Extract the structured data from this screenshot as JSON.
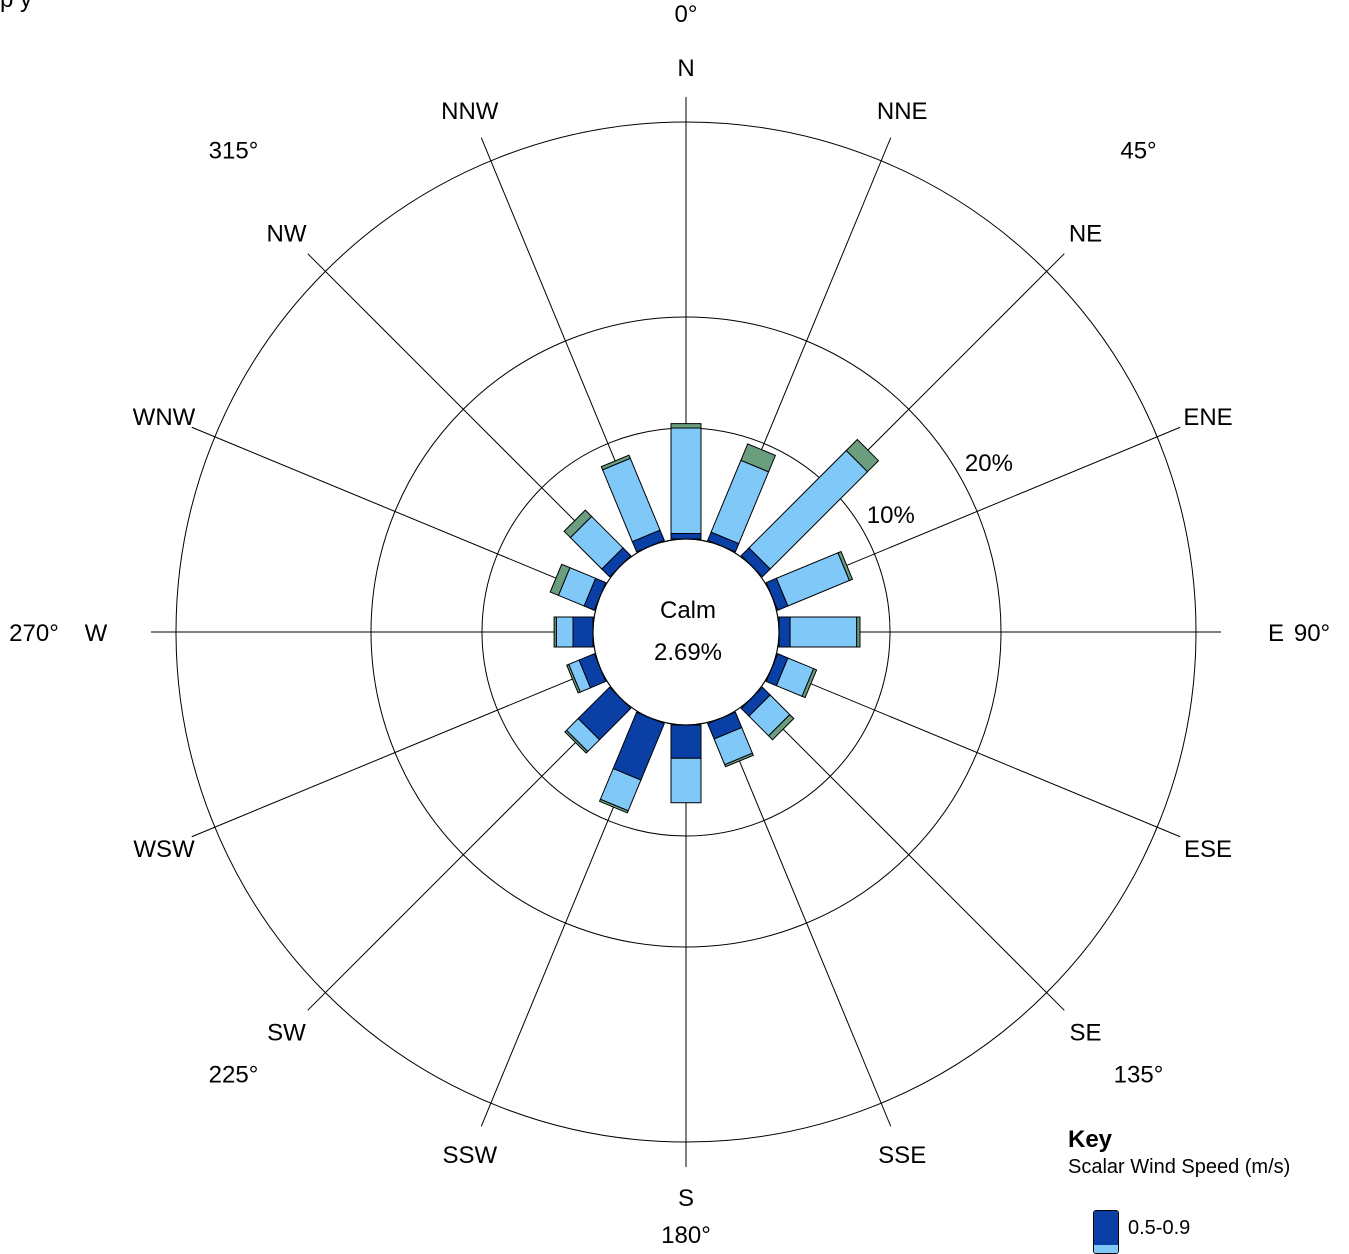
{
  "page_title": "p                y",
  "chart_data": {
    "type": "wind-rose",
    "title": "p                y",
    "directions": [
      "N",
      "NNE",
      "NE",
      "ENE",
      "E",
      "ESE",
      "SE",
      "SSE",
      "S",
      "SSW",
      "SW",
      "WSW",
      "W",
      "WNW",
      "NW",
      "NNW"
    ],
    "direction_degrees": [
      0,
      22.5,
      45,
      67.5,
      90,
      112.5,
      135,
      157.5,
      180,
      202.5,
      225,
      247.5,
      270,
      292.5,
      315,
      337.5
    ],
    "degree_labels": [
      {
        "deg": 0,
        "text": "0°"
      },
      {
        "deg": 45,
        "text": "45°"
      },
      {
        "deg": 90,
        "text": "90°"
      },
      {
        "deg": 135,
        "text": "135°"
      },
      {
        "deg": 180,
        "text": "180°"
      },
      {
        "deg": 225,
        "text": "225°"
      },
      {
        "deg": 270,
        "text": "270°"
      },
      {
        "deg": 315,
        "text": "315°"
      }
    ],
    "ring_labels": [
      "10%",
      "20%"
    ],
    "ring_values": [
      10,
      20
    ],
    "calm_label": "Calm",
    "calm_value": "2.69%",
    "series": [
      {
        "name": "0.5-0.9",
        "color": "#0a3fa6",
        "values": [
          0.5,
          0.8,
          1.0,
          1.0,
          1.0,
          1.0,
          1.0,
          1.5,
          3.0,
          5.5,
          4.0,
          1.5,
          1.8,
          1.0,
          1.0,
          1.0
        ]
      },
      {
        "name": "",
        "color": "#80c8f8",
        "values": [
          9.5,
          7.0,
          12.4,
          6.0,
          6.0,
          2.5,
          2.5,
          2.5,
          4.0,
          3.0,
          1.5,
          1.0,
          1.5,
          2.5,
          4.0,
          7.0
        ]
      },
      {
        "name": "",
        "color": "#6b9e7f",
        "values": [
          0.4,
          1.6,
          1.4,
          0.3,
          0.3,
          0.3,
          0.5,
          0.2,
          0.0,
          0.2,
          0.2,
          0.2,
          0.2,
          0.8,
          0.8,
          0.3
        ]
      }
    ],
    "legend": {
      "title": "Key",
      "subtitle": "Scalar Wind Speed (m/s)",
      "placement": "bottom-right"
    }
  }
}
